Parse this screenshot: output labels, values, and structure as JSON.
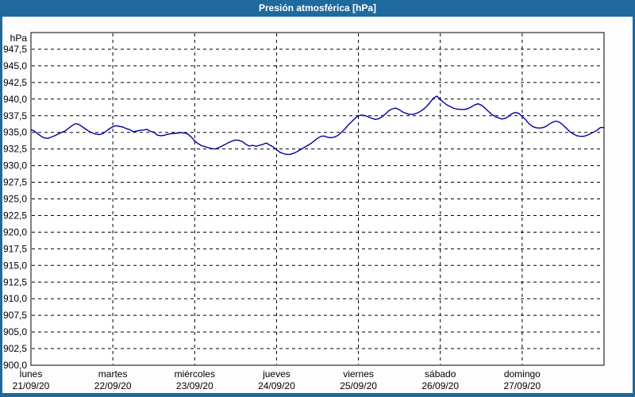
{
  "window": {
    "title": "Presión atmosférica [hPa]"
  },
  "colors": {
    "titlebar_bg": "#1e6a9e",
    "frame": "#1e6a9e",
    "content_bg": "#fdfdfd",
    "plot_bg": "#ffffff",
    "grid": "#000000",
    "line": "#0000a0",
    "title_text": "#ffffff",
    "label_text": "#000000"
  },
  "chart_data": {
    "type": "line",
    "title": "Presión atmosférica [hPa]",
    "unit_label": "hPa",
    "ylim": [
      900,
      950
    ],
    "y_tick_step": 2.5,
    "y_tick_values": [
      947.5,
      945.0,
      942.5,
      940.0,
      937.5,
      935.0,
      932.5,
      930.0,
      927.5,
      925.0,
      922.5,
      920.0,
      917.5,
      915.0,
      912.5,
      910.0,
      907.5,
      905.0,
      902.5,
      900.0
    ],
    "y_tick_labels": [
      "947,5",
      "945,0",
      "942,5",
      "940,0",
      "937,5",
      "935,0",
      "932,5",
      "930,0",
      "927,5",
      "925,0",
      "922,5",
      "920,0",
      "917,5",
      "915,0",
      "912,5",
      "910,0",
      "907,5",
      "905,0",
      "902,5",
      "900,0"
    ],
    "grid": "dashed",
    "legend": "none",
    "x_span_hours": 168,
    "x_categories": [
      {
        "day": "lunes",
        "date": "21/09/20"
      },
      {
        "day": "martes",
        "date": "22/09/20"
      },
      {
        "day": "miércoles",
        "date": "23/09/20"
      },
      {
        "day": "jueves",
        "date": "24/09/20"
      },
      {
        "day": "viernes",
        "date": "25/09/20"
      },
      {
        "day": "sábado",
        "date": "26/09/20"
      },
      {
        "day": "domingo",
        "date": "27/09/20"
      }
    ],
    "series": [
      {
        "name": "Presión atmosférica",
        "color": "#0000a0",
        "points": [
          [
            0,
            935.4
          ],
          [
            1,
            935.2
          ],
          [
            2,
            934.8
          ],
          [
            3,
            934.4
          ],
          [
            4,
            934.15
          ],
          [
            5,
            934.1
          ],
          [
            6,
            934.3
          ],
          [
            7,
            934.5
          ],
          [
            8,
            934.75
          ],
          [
            9,
            935.0
          ],
          [
            10,
            935.2
          ],
          [
            11,
            935.6
          ],
          [
            12,
            936.0
          ],
          [
            13,
            936.3
          ],
          [
            14,
            936.2
          ],
          [
            15,
            935.85
          ],
          [
            16,
            935.5
          ],
          [
            17,
            935.15
          ],
          [
            18,
            934.9
          ],
          [
            19,
            934.75
          ],
          [
            20,
            934.65
          ],
          [
            21,
            934.8
          ],
          [
            22,
            935.15
          ],
          [
            23,
            935.55
          ],
          [
            24,
            935.85
          ],
          [
            25,
            936.0
          ],
          [
            26,
            935.9
          ],
          [
            27,
            935.8
          ],
          [
            28,
            935.55
          ],
          [
            29,
            935.4
          ],
          [
            30,
            935.1
          ],
          [
            31,
            935.2
          ],
          [
            32,
            935.3
          ],
          [
            33,
            935.35
          ],
          [
            34,
            935.45
          ],
          [
            35,
            935.15
          ],
          [
            36,
            935.05
          ],
          [
            37,
            934.6
          ],
          [
            38,
            934.5
          ],
          [
            39,
            934.55
          ],
          [
            40,
            934.7
          ],
          [
            41,
            934.8
          ],
          [
            42,
            934.85
          ],
          [
            43,
            934.9
          ],
          [
            44,
            934.95
          ],
          [
            45,
            934.9
          ],
          [
            46,
            934.75
          ],
          [
            47,
            934.3
          ],
          [
            48,
            933.7
          ],
          [
            49,
            933.3
          ],
          [
            50,
            933.0
          ],
          [
            51,
            932.85
          ],
          [
            52,
            932.7
          ],
          [
            53,
            932.55
          ],
          [
            54,
            932.5
          ],
          [
            55,
            932.7
          ],
          [
            56,
            932.95
          ],
          [
            57,
            933.2
          ],
          [
            58,
            933.5
          ],
          [
            59,
            933.7
          ],
          [
            60,
            933.85
          ],
          [
            61,
            933.8
          ],
          [
            62,
            933.6
          ],
          [
            63,
            933.2
          ],
          [
            64,
            932.95
          ],
          [
            65,
            933.05
          ],
          [
            66,
            932.9
          ],
          [
            67,
            933.05
          ],
          [
            68,
            933.2
          ],
          [
            69,
            933.4
          ],
          [
            70,
            933.1
          ],
          [
            71,
            932.8
          ],
          [
            72,
            932.4
          ],
          [
            73,
            932.0
          ],
          [
            74,
            931.8
          ],
          [
            75,
            931.7
          ],
          [
            76,
            931.7
          ],
          [
            77,
            931.85
          ],
          [
            78,
            932.1
          ],
          [
            79,
            932.4
          ],
          [
            80,
            932.7
          ],
          [
            81,
            933.0
          ],
          [
            82,
            933.3
          ],
          [
            83,
            933.7
          ],
          [
            84,
            934.1
          ],
          [
            85,
            934.4
          ],
          [
            86,
            934.45
          ],
          [
            87,
            934.25
          ],
          [
            88,
            934.2
          ],
          [
            89,
            934.3
          ],
          [
            90,
            934.55
          ],
          [
            91,
            935.0
          ],
          [
            92,
            935.5
          ],
          [
            93,
            936.1
          ],
          [
            94,
            936.6
          ],
          [
            95,
            937.1
          ],
          [
            96,
            937.5
          ],
          [
            97,
            937.6
          ],
          [
            98,
            937.5
          ],
          [
            99,
            937.3
          ],
          [
            100,
            937.1
          ],
          [
            101,
            936.95
          ],
          [
            102,
            937.05
          ],
          [
            103,
            937.4
          ],
          [
            104,
            937.8
          ],
          [
            105,
            938.3
          ],
          [
            106,
            938.55
          ],
          [
            107,
            938.65
          ],
          [
            108,
            938.4
          ],
          [
            109,
            938.05
          ],
          [
            110,
            937.85
          ],
          [
            111,
            937.7
          ],
          [
            112,
            937.7
          ],
          [
            113,
            937.85
          ],
          [
            114,
            938.1
          ],
          [
            115,
            938.45
          ],
          [
            116,
            938.9
          ],
          [
            117,
            939.5
          ],
          [
            118,
            940.15
          ],
          [
            119,
            940.45
          ],
          [
            120,
            939.9
          ],
          [
            121,
            939.5
          ],
          [
            122,
            939.1
          ],
          [
            123,
            938.85
          ],
          [
            124,
            938.6
          ],
          [
            125,
            938.5
          ],
          [
            126,
            938.45
          ],
          [
            127,
            938.45
          ],
          [
            128,
            938.55
          ],
          [
            129,
            938.8
          ],
          [
            130,
            939.1
          ],
          [
            131,
            939.3
          ],
          [
            132,
            939.1
          ],
          [
            133,
            938.7
          ],
          [
            134,
            938.2
          ],
          [
            135,
            937.75
          ],
          [
            136,
            937.4
          ],
          [
            137,
            937.2
          ],
          [
            138,
            937.0
          ],
          [
            139,
            937.1
          ],
          [
            140,
            937.4
          ],
          [
            141,
            937.8
          ],
          [
            142,
            938.0
          ],
          [
            143,
            937.85
          ],
          [
            144,
            937.4
          ],
          [
            145,
            936.9
          ],
          [
            146,
            936.3
          ],
          [
            147,
            935.9
          ],
          [
            148,
            935.7
          ],
          [
            149,
            935.65
          ],
          [
            150,
            935.7
          ],
          [
            151,
            935.9
          ],
          [
            152,
            936.25
          ],
          [
            153,
            936.55
          ],
          [
            154,
            936.7
          ],
          [
            155,
            936.5
          ],
          [
            156,
            936.1
          ],
          [
            157,
            935.6
          ],
          [
            158,
            935.1
          ],
          [
            159,
            934.75
          ],
          [
            160,
            934.5
          ],
          [
            161,
            934.4
          ],
          [
            162,
            934.4
          ],
          [
            163,
            934.55
          ],
          [
            164,
            934.8
          ],
          [
            165,
            935.05
          ],
          [
            166,
            935.35
          ],
          [
            167,
            935.75
          ],
          [
            168,
            935.7
          ]
        ]
      }
    ]
  }
}
